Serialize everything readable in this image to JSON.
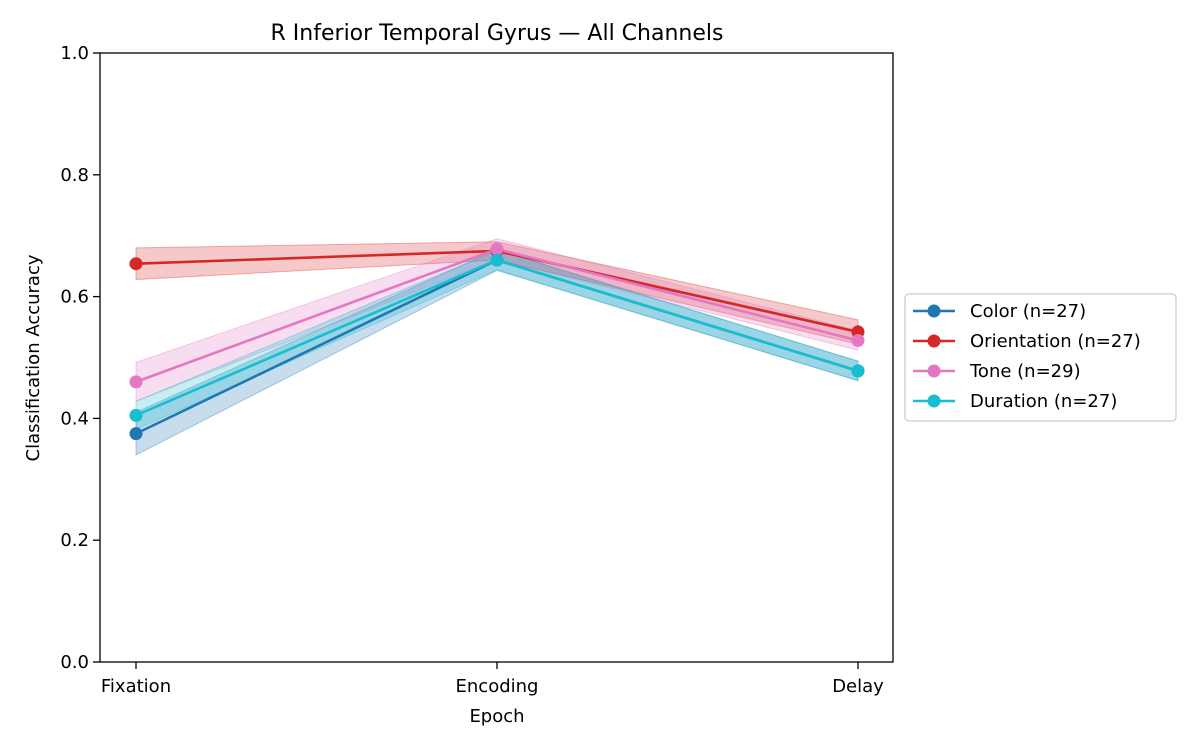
{
  "chart_data": {
    "type": "line",
    "title": "R Inferior Temporal Gyrus — All Channels",
    "xlabel": "Epoch",
    "ylabel": "Classification Accuracy",
    "categories": [
      "Fixation",
      "Encoding",
      "Delay"
    ],
    "ylim": [
      0,
      1.0
    ],
    "yticks": [
      "0.0",
      "0.2",
      "0.4",
      "0.6",
      "0.8",
      "1.0"
    ],
    "legend_position": "center-right outside",
    "grid": false,
    "series": [
      {
        "name": "Color (n=27)",
        "color": "#1f77b4",
        "values": [
          0.375,
          0.66,
          0.478
        ],
        "lower": [
          0.34,
          0.643,
          0.462
        ],
        "upper": [
          0.41,
          0.677,
          0.494
        ]
      },
      {
        "name": "Orientation (n=27)",
        "color": "#d62728",
        "values": [
          0.654,
          0.675,
          0.542
        ],
        "lower": [
          0.628,
          0.66,
          0.522
        ],
        "upper": [
          0.68,
          0.69,
          0.562
        ]
      },
      {
        "name": "Tone (n=29)",
        "color": "#e377c2",
        "values": [
          0.46,
          0.678,
          0.528
        ],
        "lower": [
          0.428,
          0.661,
          0.512
        ],
        "upper": [
          0.492,
          0.695,
          0.544
        ]
      },
      {
        "name": "Duration (n=27)",
        "color": "#17becf",
        "values": [
          0.405,
          0.66,
          0.478
        ],
        "lower": [
          0.382,
          0.644,
          0.462
        ],
        "upper": [
          0.428,
          0.676,
          0.494
        ]
      }
    ]
  }
}
